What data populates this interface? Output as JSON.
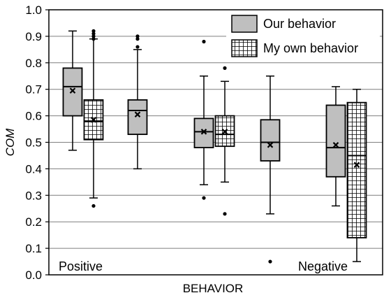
{
  "chart_data": {
    "type": "box",
    "xlabel": "BEHAVIOR",
    "ylabel": "COM",
    "ylim": [
      0.0,
      1.0
    ],
    "yticks": [
      "0.0",
      "0.1",
      "0.2",
      "0.3",
      "0.4",
      "0.5",
      "0.6",
      "0.7",
      "0.8",
      "0.9",
      "1.0"
    ],
    "grid": "horizontal",
    "legend_position": "top-right",
    "annotations": [
      "Positive",
      "Negative"
    ],
    "colors": {
      "our": "#bfbfbf",
      "own": "#ffffff",
      "stroke": "#000000",
      "grid": "#7f7f7f"
    },
    "series": [
      {
        "name": "Our behavior",
        "pattern": "solid-gray"
      },
      {
        "name": "My own behavior",
        "pattern": "grid-hatch"
      }
    ],
    "boxes": [
      {
        "series": "Our behavior",
        "min": 0.47,
        "q1": 0.6,
        "median": 0.71,
        "q3": 0.78,
        "max": 0.92,
        "mean": 0.695,
        "outliers": []
      },
      {
        "series": "My own behavior",
        "min": 0.29,
        "q1": 0.51,
        "median": 0.58,
        "q3": 0.66,
        "max": 0.89,
        "mean": 0.585,
        "outliers": [
          0.26,
          0.89,
          0.9,
          0.91,
          0.92
        ]
      },
      {
        "series": "Our behavior",
        "min": 0.4,
        "q1": 0.53,
        "median": 0.62,
        "q3": 0.66,
        "max": 0.85,
        "mean": 0.605,
        "outliers": [
          0.86,
          0.89,
          0.9
        ]
      },
      {
        "series": "Our behavior",
        "min": 0.34,
        "q1": 0.48,
        "median": 0.54,
        "q3": 0.59,
        "max": 0.75,
        "mean": 0.54,
        "outliers": [
          0.29,
          0.88
        ]
      },
      {
        "series": "My own behavior",
        "min": 0.35,
        "q1": 0.485,
        "median": 0.53,
        "q3": 0.6,
        "max": 0.73,
        "mean": 0.54,
        "outliers": [
          0.23,
          0.78
        ]
      },
      {
        "series": "Our behavior",
        "min": 0.23,
        "q1": 0.43,
        "median": 0.5,
        "q3": 0.585,
        "max": 0.75,
        "mean": 0.49,
        "outliers": [
          0.05
        ]
      },
      {
        "series": "Our behavior",
        "min": 0.26,
        "q1": 0.37,
        "median": 0.48,
        "q3": 0.64,
        "max": 0.71,
        "mean": 0.49,
        "outliers": []
      },
      {
        "series": "My own behavior",
        "min": 0.05,
        "q1": 0.14,
        "median": 0.45,
        "q3": 0.65,
        "max": 0.7,
        "mean": 0.415,
        "outliers": []
      }
    ]
  }
}
